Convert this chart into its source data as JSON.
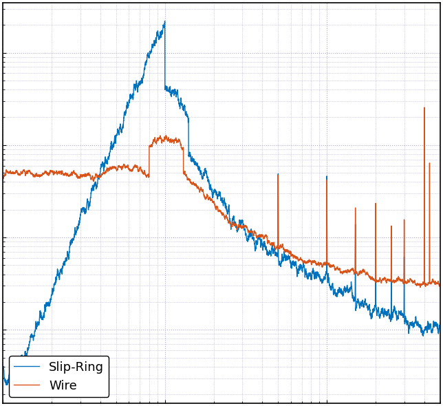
{
  "line_slip_ring_color": "#0072BD",
  "line_wire_color": "#D95319",
  "line_width": 1.0,
  "legend_labels": [
    "Slip-Ring",
    "Wire"
  ],
  "legend_loc": "lower left",
  "background_color": "#ffffff",
  "grid_color": "#aaaacc",
  "figsize": [
    6.44,
    5.9
  ],
  "dpi": 100,
  "seed": 42,
  "xlim_log": [
    0,
    2.699
  ],
  "ylim_log": [
    -9.5,
    -4.0
  ]
}
